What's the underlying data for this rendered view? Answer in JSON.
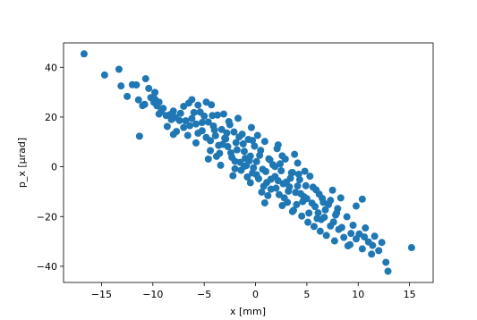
{
  "chart_data": {
    "type": "scatter",
    "title": "",
    "xlabel": "x [mm]",
    "ylabel": "p_x [μrad]",
    "xlim": [
      -18.7,
      17.3
    ],
    "ylim": [
      -46.5,
      49.8
    ],
    "xticks": [
      -15,
      -10,
      -5,
      0,
      5,
      10,
      15
    ],
    "yticks": [
      -40,
      -20,
      0,
      20,
      40
    ],
    "xtick_labels": [
      "−15",
      "−10",
      "−5",
      "0",
      "5",
      "10",
      "15"
    ],
    "ytick_labels": [
      "−40",
      "−20",
      "0",
      "20",
      "40"
    ],
    "grid": false,
    "marker_color": "#1f77b4",
    "series": [
      {
        "points": [
          [
            -16.7,
            45.4
          ],
          [
            -14.7,
            36.9
          ],
          [
            -13.3,
            39.2
          ],
          [
            -13.1,
            32.5
          ],
          [
            -12.0,
            33.0
          ],
          [
            -11.6,
            32.9
          ],
          [
            -12.5,
            28.3
          ],
          [
            -10.7,
            35.4
          ],
          [
            -10.4,
            31.5
          ],
          [
            -11.4,
            26.9
          ],
          [
            -9.8,
            29.9
          ],
          [
            -9.8,
            27.2
          ],
          [
            -11.3,
            12.3
          ],
          [
            -10.8,
            25.1
          ],
          [
            -9.9,
            25.9
          ],
          [
            -9.4,
            26.0
          ],
          [
            -9.6,
            24.5
          ],
          [
            -9.2,
            22.3
          ],
          [
            -8.7,
            20.6
          ],
          [
            -8.6,
            16.2
          ],
          [
            -8.3,
            21.0
          ],
          [
            -8.0,
            22.4
          ],
          [
            -7.8,
            19.8
          ],
          [
            -7.7,
            14.2
          ],
          [
            -7.3,
            21.5
          ],
          [
            -7.0,
            24.3
          ],
          [
            -6.8,
            18.5
          ],
          [
            -6.5,
            25.6
          ],
          [
            -6.2,
            27.0
          ],
          [
            -6.0,
            21.8
          ],
          [
            -5.8,
            17.2
          ],
          [
            -5.6,
            24.8
          ],
          [
            -5.4,
            22.0
          ],
          [
            -5.2,
            14.5
          ],
          [
            -5.0,
            20.4
          ],
          [
            -4.8,
            26.0
          ],
          [
            -4.6,
            18.0
          ],
          [
            -4.4,
            10.5
          ],
          [
            -4.3,
            24.9
          ],
          [
            -4.1,
            16.4
          ],
          [
            -3.9,
            12.5
          ],
          [
            -3.7,
            20.8
          ],
          [
            -3.5,
            5.4
          ],
          [
            -3.3,
            15.0
          ],
          [
            -3.1,
            21.2
          ],
          [
            -2.9,
            11.2
          ],
          [
            -2.7,
            8.1
          ],
          [
            -2.5,
            16.9
          ],
          [
            -2.3,
            3.8
          ],
          [
            -2.1,
            14.0
          ],
          [
            -1.9,
            9.7
          ],
          [
            -1.7,
            19.5
          ],
          [
            -1.5,
            1.8
          ],
          [
            -1.3,
            13.1
          ],
          [
            -1.1,
            6.2
          ],
          [
            -0.9,
            0.5
          ],
          [
            -0.7,
            11.0
          ],
          [
            -0.5,
            4.3
          ],
          [
            -0.3,
            -2.5
          ],
          [
            -0.1,
            8.3
          ],
          [
            0.1,
            2.1
          ],
          [
            0.3,
            -4.8
          ],
          [
            0.5,
            6.6
          ],
          [
            0.7,
            -1.0
          ],
          [
            0.9,
            10.2
          ],
          [
            1.1,
            -6.3
          ],
          [
            1.3,
            3.2
          ],
          [
            1.5,
            -9.0
          ],
          [
            1.7,
            0.8
          ],
          [
            1.9,
            -3.9
          ],
          [
            2.1,
            7.3
          ],
          [
            2.3,
            -11.2
          ],
          [
            2.5,
            -1.6
          ],
          [
            2.7,
            -6.8
          ],
          [
            2.9,
            3.1
          ],
          [
            3.1,
            -14.3
          ],
          [
            3.3,
            -8.1
          ],
          [
            3.5,
            -2.4
          ],
          [
            3.7,
            -17.5
          ],
          [
            3.9,
            -10.3
          ],
          [
            4.1,
            1.5
          ],
          [
            4.3,
            -5.2
          ],
          [
            4.5,
            -19.8
          ],
          [
            4.7,
            -12.0
          ],
          [
            4.9,
            -7.6
          ],
          [
            5.1,
            -22.3
          ],
          [
            5.3,
            -3.8
          ],
          [
            5.5,
            -14.6
          ],
          [
            5.7,
            -24.0
          ],
          [
            5.9,
            -9.3
          ],
          [
            6.1,
            -18.5
          ],
          [
            6.3,
            -25.9
          ],
          [
            6.5,
            -12.7
          ],
          [
            6.7,
            -20.3
          ],
          [
            6.9,
            -27.6
          ],
          [
            7.1,
            -15.2
          ],
          [
            7.3,
            -23.8
          ],
          [
            7.5,
            -9.4
          ],
          [
            7.7,
            -29.8
          ],
          [
            7.9,
            -18.6
          ],
          [
            8.1,
            -25.2
          ],
          [
            8.3,
            -12.5
          ],
          [
            8.6,
            -28.4
          ],
          [
            8.9,
            -20.1
          ],
          [
            9.2,
            -31.3
          ],
          [
            9.5,
            -23.5
          ],
          [
            9.8,
            -15.8
          ],
          [
            10.1,
            -27.0
          ],
          [
            10.4,
            -33.0
          ],
          [
            10.7,
            -24.6
          ],
          [
            11.0,
            -30.2
          ],
          [
            11.3,
            -35.1
          ],
          [
            11.6,
            -27.9
          ],
          [
            12.0,
            -33.7
          ],
          [
            12.3,
            -30.4
          ],
          [
            12.7,
            -38.4
          ],
          [
            12.9,
            -42.0
          ],
          [
            15.2,
            -32.5
          ],
          [
            10.4,
            -13.0
          ],
          [
            9.0,
            -31.8
          ],
          [
            4.1,
            -7.7
          ],
          [
            2.6,
            4.4
          ],
          [
            -0.3,
            10.6
          ],
          [
            3.6,
            -2.3
          ],
          [
            1.2,
            -11.6
          ],
          [
            4.6,
            -14.0
          ],
          [
            7.3,
            -13.5
          ],
          [
            -2.8,
            13.6
          ],
          [
            6.4,
            -21.2
          ],
          [
            -1.4,
            -1.4
          ],
          [
            -3.2,
            9.0
          ],
          [
            2.2,
            -5.6
          ],
          [
            -1.0,
            3.4
          ],
          [
            0.8,
            -7.8
          ],
          [
            -4.8,
            11.8
          ],
          [
            5.8,
            -16.0
          ],
          [
            -0.6,
            2.4
          ],
          [
            1.9,
            0.1
          ],
          [
            -2.4,
            5.6
          ],
          [
            3.2,
            -9.8
          ],
          [
            -5.6,
            13.5
          ],
          [
            0.1,
            -3.2
          ],
          [
            -1.8,
            6.8
          ],
          [
            2.8,
            -12.5
          ],
          [
            -3.6,
            8.6
          ],
          [
            4.4,
            -10.8
          ],
          [
            -0.2,
            -0.4
          ],
          [
            1.5,
            -5.0
          ],
          [
            -4.0,
            14.8
          ],
          [
            5.2,
            -18.6
          ],
          [
            -2.0,
            2.2
          ],
          [
            3.0,
            -6.1
          ],
          [
            -6.4,
            16.5
          ],
          [
            6.8,
            -17.3
          ],
          [
            0.4,
            4.6
          ],
          [
            -0.8,
            -4.1
          ],
          [
            2.0,
            -8.6
          ],
          [
            -3.0,
            11.5
          ],
          [
            4.0,
            -15.2
          ],
          [
            -1.2,
            9.2
          ],
          [
            1.0,
            -1.9
          ],
          [
            -2.6,
            18.2
          ],
          [
            3.4,
            -4.6
          ],
          [
            -4.4,
            6.5
          ],
          [
            5.0,
            -12.8
          ],
          [
            0.6,
            -10.2
          ],
          [
            -1.6,
            12.0
          ],
          [
            2.4,
            1.2
          ],
          [
            -5.2,
            17.8
          ],
          [
            6.0,
            -20.8
          ],
          [
            -7.0,
            15.8
          ],
          [
            7.6,
            -22.2
          ],
          [
            -8.2,
            19.0
          ],
          [
            8.4,
            -24.4
          ],
          [
            -9.0,
            23.5
          ],
          [
            9.3,
            -26.8
          ],
          [
            -6.6,
            12.6
          ],
          [
            6.6,
            -14.3
          ],
          [
            -0.4,
            15.8
          ],
          [
            0.9,
            -14.5
          ],
          [
            -3.4,
            0.6
          ],
          [
            3.8,
            5.0
          ],
          [
            -2.2,
            -3.6
          ],
          [
            2.2,
            8.8
          ],
          [
            -4.6,
            3.1
          ],
          [
            4.8,
            -1.8
          ],
          [
            -5.8,
            9.6
          ],
          [
            5.6,
            -8.2
          ],
          [
            -7.4,
            18.6
          ],
          [
            7.8,
            -19.4
          ],
          [
            -1.1,
            0.2
          ],
          [
            1.4,
            2.8
          ],
          [
            -0.5,
            -6.4
          ],
          [
            0.2,
            12.6
          ],
          [
            -2.0,
            -0.8
          ],
          [
            2.6,
            -15.6
          ],
          [
            -3.8,
            4.2
          ],
          [
            3.6,
            -18.0
          ],
          [
            -4.2,
            20.6
          ],
          [
            4.2,
            -3.0
          ],
          [
            -6.2,
            19.4
          ],
          [
            6.2,
            -11.0
          ],
          [
            -8.0,
            13.0
          ],
          [
            8.0,
            -16.8
          ],
          [
            -9.4,
            21.2
          ],
          [
            9.8,
            -29.0
          ],
          [
            -10.2,
            27.8
          ],
          [
            10.6,
            -28.2
          ],
          [
            11.4,
            -31.6
          ],
          [
            -11.0,
            24.6
          ]
        ]
      }
    ]
  }
}
